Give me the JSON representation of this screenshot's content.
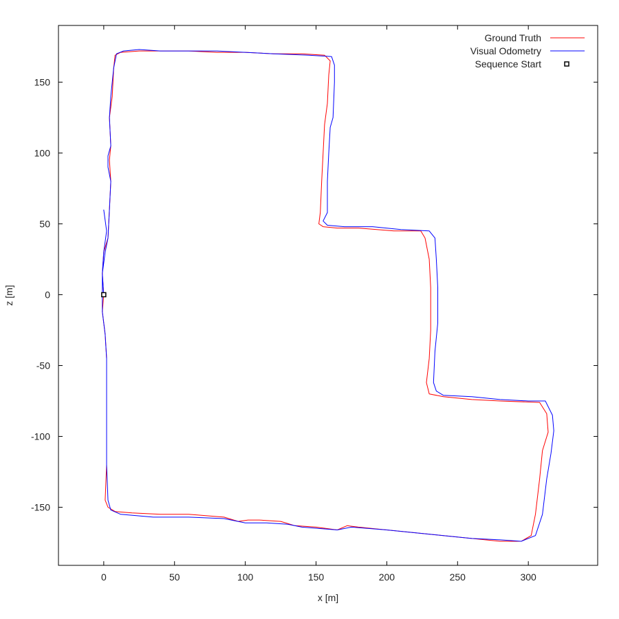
{
  "chart_data": {
    "type": "line",
    "title": "",
    "xlabel": "x [m]",
    "ylabel": "z [m]",
    "xlim": [
      -32,
      349
    ],
    "ylim": [
      -191,
      190
    ],
    "x_ticks": [
      0,
      50,
      100,
      150,
      200,
      250,
      300
    ],
    "y_ticks": [
      -150,
      -100,
      -50,
      0,
      50,
      100,
      150
    ],
    "grid": false,
    "legend_position": "top-right",
    "series": [
      {
        "name": "Ground Truth",
        "color": "#ff0000",
        "points": [
          [
            0,
            0
          ],
          [
            -1,
            -12
          ],
          [
            1,
            -28
          ],
          [
            2,
            -45
          ],
          [
            2,
            -80
          ],
          [
            2,
            -120
          ],
          [
            1,
            -145
          ],
          [
            3,
            -150
          ],
          [
            8,
            -153
          ],
          [
            20,
            -154
          ],
          [
            40,
            -155
          ],
          [
            60,
            -155
          ],
          [
            85,
            -157
          ],
          [
            95,
            -160
          ],
          [
            102,
            -159
          ],
          [
            110,
            -159
          ],
          [
            125,
            -160
          ],
          [
            135,
            -163
          ],
          [
            150,
            -164
          ],
          [
            165,
            -166
          ],
          [
            172,
            -163
          ],
          [
            180,
            -164
          ],
          [
            200,
            -166
          ],
          [
            220,
            -168
          ],
          [
            240,
            -170
          ],
          [
            260,
            -172
          ],
          [
            280,
            -174
          ],
          [
            295,
            -174
          ],
          [
            302,
            -170
          ],
          [
            305,
            -155
          ],
          [
            308,
            -130
          ],
          [
            310,
            -110
          ],
          [
            314,
            -97
          ],
          [
            313,
            -84
          ],
          [
            308,
            -76
          ],
          [
            280,
            -75
          ],
          [
            260,
            -74
          ],
          [
            240,
            -72
          ],
          [
            230,
            -70
          ],
          [
            228,
            -62
          ],
          [
            230,
            -45
          ],
          [
            231,
            -25
          ],
          [
            231,
            5
          ],
          [
            230,
            25
          ],
          [
            227,
            40
          ],
          [
            224,
            45
          ],
          [
            205,
            45
          ],
          [
            180,
            47
          ],
          [
            165,
            47
          ],
          [
            155,
            48
          ],
          [
            152,
            50
          ],
          [
            153,
            58
          ],
          [
            154,
            80
          ],
          [
            155,
            100
          ],
          [
            156,
            120
          ],
          [
            158,
            135
          ],
          [
            159,
            155
          ],
          [
            160,
            165
          ],
          [
            156,
            169
          ],
          [
            140,
            170
          ],
          [
            120,
            170
          ],
          [
            100,
            171
          ],
          [
            80,
            171
          ],
          [
            60,
            172
          ],
          [
            40,
            172
          ],
          [
            25,
            172
          ],
          [
            12,
            171
          ],
          [
            8,
            169
          ],
          [
            7,
            160
          ],
          [
            6,
            140
          ],
          [
            4,
            125
          ],
          [
            5,
            105
          ],
          [
            4,
            95
          ],
          [
            5,
            80
          ],
          [
            4,
            60
          ],
          [
            3,
            40
          ],
          [
            0,
            30
          ],
          [
            -1,
            15
          ],
          [
            0,
            0
          ]
        ]
      },
      {
        "name": "Visual Odometry",
        "color": "#0000ff",
        "points": [
          [
            0,
            60
          ],
          [
            2,
            45
          ],
          [
            0,
            30
          ],
          [
            -1,
            15
          ],
          [
            -1,
            0
          ],
          [
            -1,
            -12
          ],
          [
            1,
            -28
          ],
          [
            2,
            -45
          ],
          [
            2,
            -80
          ],
          [
            2,
            -120
          ],
          [
            3,
            -145
          ],
          [
            5,
            -152
          ],
          [
            12,
            -155
          ],
          [
            35,
            -157
          ],
          [
            60,
            -157
          ],
          [
            85,
            -158
          ],
          [
            100,
            -161
          ],
          [
            115,
            -161
          ],
          [
            130,
            -162
          ],
          [
            140,
            -164
          ],
          [
            165,
            -166
          ],
          [
            175,
            -164
          ],
          [
            200,
            -166
          ],
          [
            220,
            -168
          ],
          [
            240,
            -170
          ],
          [
            260,
            -172
          ],
          [
            280,
            -173
          ],
          [
            295,
            -174
          ],
          [
            305,
            -170
          ],
          [
            310,
            -155
          ],
          [
            313,
            -130
          ],
          [
            316,
            -112
          ],
          [
            318,
            -96
          ],
          [
            317,
            -85
          ],
          [
            312,
            -75
          ],
          [
            300,
            -75
          ],
          [
            280,
            -74
          ],
          [
            260,
            -72
          ],
          [
            240,
            -71
          ],
          [
            235,
            -68
          ],
          [
            233,
            -62
          ],
          [
            234,
            -40
          ],
          [
            236,
            -20
          ],
          [
            236,
            5
          ],
          [
            235,
            25
          ],
          [
            234,
            40
          ],
          [
            230,
            45
          ],
          [
            210,
            46
          ],
          [
            190,
            48
          ],
          [
            170,
            48
          ],
          [
            158,
            49
          ],
          [
            155,
            52
          ],
          [
            158,
            58
          ],
          [
            158,
            80
          ],
          [
            159,
            100
          ],
          [
            160,
            118
          ],
          [
            162,
            125
          ],
          [
            163,
            150
          ],
          [
            163,
            162
          ],
          [
            161,
            168
          ],
          [
            145,
            169
          ],
          [
            120,
            170
          ],
          [
            100,
            171
          ],
          [
            80,
            172
          ],
          [
            60,
            172
          ],
          [
            40,
            172
          ],
          [
            25,
            173
          ],
          [
            14,
            172
          ],
          [
            9,
            170
          ],
          [
            7,
            160
          ],
          [
            5,
            140
          ],
          [
            4,
            125
          ],
          [
            5,
            105
          ],
          [
            3,
            98
          ],
          [
            3,
            90
          ],
          [
            5,
            80
          ],
          [
            4,
            60
          ],
          [
            3,
            40
          ],
          [
            1,
            30
          ],
          [
            -1,
            15
          ],
          [
            0,
            0
          ]
        ]
      }
    ],
    "markers": [
      {
        "name": "Sequence Start",
        "x": 0,
        "y": 0,
        "symbol": "open-square",
        "color": "#000000"
      }
    ]
  }
}
